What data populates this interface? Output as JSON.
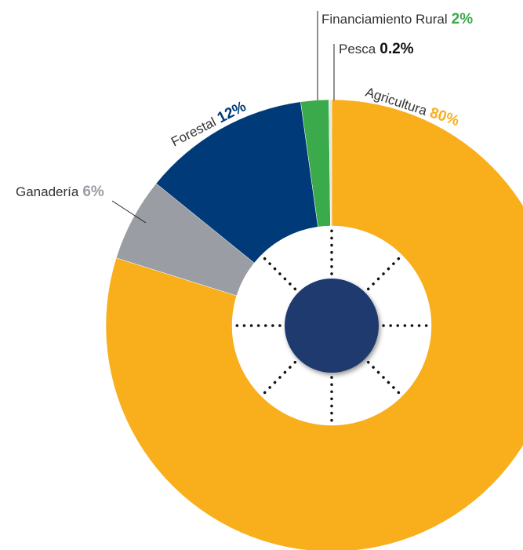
{
  "chart_data": {
    "type": "donut",
    "categories": [
      "Agricultura",
      "Ganadería",
      "Forestal",
      "Financiamiento Rural",
      "Pesca"
    ],
    "values": [
      80,
      6,
      12,
      2,
      0.2
    ],
    "value_labels": [
      "80%",
      "6%",
      "12%",
      "2%",
      "0.2%"
    ],
    "colors": [
      "#F9AE1B",
      "#9A9DA3",
      "#003A78",
      "#3AAA4A",
      "#E6E6E6"
    ],
    "label_colors": [
      "#F9AE1B",
      "#9A9DA3",
      "#003A78",
      "#3AAA4A",
      "#111111"
    ]
  }
}
